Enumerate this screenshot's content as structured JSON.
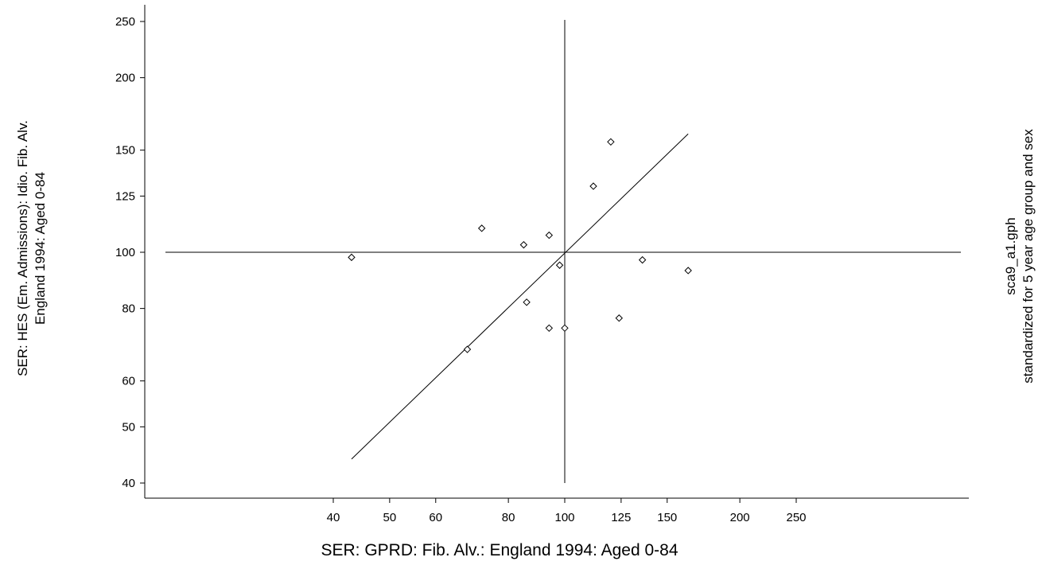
{
  "chart_data": {
    "type": "scatter",
    "scale": "log",
    "xlabel": "SER: GPRD: Fib. Alv.: England 1994: Aged 0-84",
    "ylabel_line1": "SER: HES (Em. Admissions): Idio. Fib. Alv.",
    "ylabel_line2": "England 1994: Aged 0-84",
    "note_line1": "sca9_a1.gph",
    "note_line2": "standardized for 5 year age group and sex",
    "xlim": [
      30,
      400
    ],
    "ylim": [
      38,
      260
    ],
    "x_ticks": [
      40,
      50,
      60,
      80,
      100,
      125,
      150,
      200,
      250
    ],
    "y_ticks": [
      40,
      50,
      60,
      80,
      100,
      125,
      150,
      200,
      250
    ],
    "reference_lines": {
      "x": 100,
      "y": 100
    },
    "points": [
      {
        "x": 43,
        "y": 98
      },
      {
        "x": 68,
        "y": 68
      },
      {
        "x": 72,
        "y": 110
      },
      {
        "x": 85,
        "y": 103
      },
      {
        "x": 86,
        "y": 82
      },
      {
        "x": 94,
        "y": 107
      },
      {
        "x": 94,
        "y": 74
      },
      {
        "x": 98,
        "y": 95
      },
      {
        "x": 100,
        "y": 74
      },
      {
        "x": 112,
        "y": 130
      },
      {
        "x": 120,
        "y": 155
      },
      {
        "x": 124,
        "y": 77
      },
      {
        "x": 136,
        "y": 97
      },
      {
        "x": 163,
        "y": 93
      }
    ],
    "fit_line": [
      [
        43,
        44
      ],
      [
        163,
        160
      ]
    ]
  }
}
